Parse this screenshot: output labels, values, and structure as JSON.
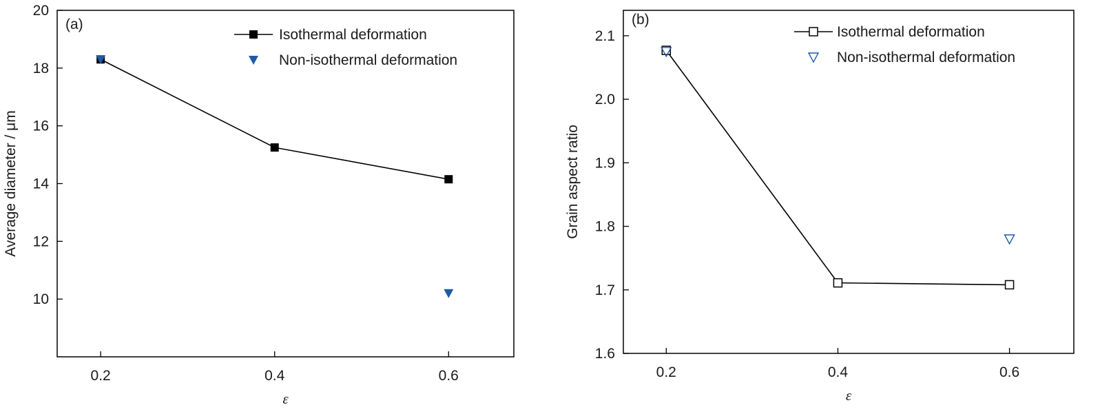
{
  "chart_data": [
    {
      "type": "line",
      "panel_tag": "(a)",
      "xlabel": "ε",
      "ylabel": "Average diameter / μm",
      "xlim": [
        0.15,
        0.675
      ],
      "ylim": [
        8,
        20
      ],
      "x_ticks": [
        "0.2",
        "0.4",
        "0.6"
      ],
      "y_ticks": [
        "10",
        "12",
        "14",
        "16",
        "18",
        "20"
      ],
      "legend_position": "top-right",
      "series": [
        {
          "name": "Isothermal deformation",
          "marker": "filled-square",
          "line": true,
          "color": "#000000",
          "x": [
            0.2,
            0.4,
            0.6
          ],
          "values": [
            18.3,
            15.25,
            14.15
          ]
        },
        {
          "name": "Non-isothermal  deformation",
          "marker": "filled-triangle-down",
          "line": false,
          "color": "#1f5aa6",
          "x": [
            0.2,
            0.6
          ],
          "values": [
            18.3,
            10.2
          ]
        }
      ]
    },
    {
      "type": "line",
      "panel_tag": "(b)",
      "xlabel": "ε",
      "ylabel": "Grain aspect ratio",
      "xlim": [
        0.15,
        0.675
      ],
      "ylim": [
        1.6,
        2.14
      ],
      "x_ticks": [
        "0.2",
        "0.4",
        "0.6"
      ],
      "y_ticks": [
        "1.6",
        "1.7",
        "1.8",
        "1.9",
        "2.0",
        "2.1"
      ],
      "legend_position": "top-right",
      "series": [
        {
          "name": "Isothermal deformation",
          "marker": "open-square",
          "line": true,
          "color": "#000000",
          "x": [
            0.2,
            0.4,
            0.6
          ],
          "values": [
            2.077,
            1.711,
            1.708
          ]
        },
        {
          "name": "Non-isothermal  deformation",
          "marker": "open-triangle-down",
          "line": false,
          "color": "#1f5aa6",
          "x": [
            0.2,
            0.6
          ],
          "values": [
            2.075,
            1.78
          ]
        }
      ]
    }
  ]
}
